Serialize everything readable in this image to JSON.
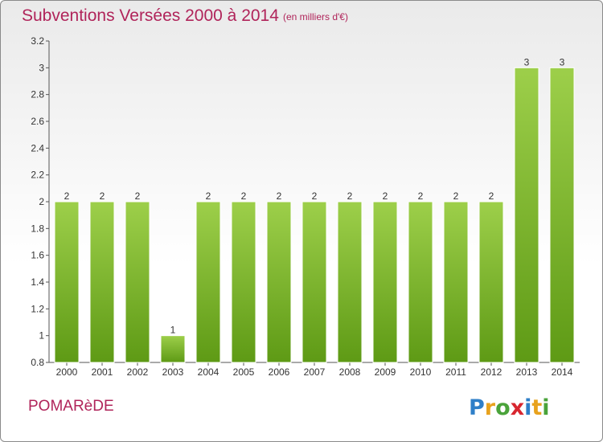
{
  "header": {
    "title": "Subventions Versées 2000 à 2014",
    "unit": "(en milliers d'€)"
  },
  "footer": {
    "commune": "POMARèDE",
    "logo_text": "Proxiti"
  },
  "colors": {
    "title": "#b0245a",
    "bar_light": "#9dcf4a",
    "bar_dark": "#5e9a15"
  },
  "chart_data": {
    "type": "bar",
    "categories": [
      "2000",
      "2001",
      "2002",
      "2003",
      "2004",
      "2005",
      "2006",
      "2007",
      "2008",
      "2009",
      "2010",
      "2011",
      "2012",
      "2013",
      "2014"
    ],
    "values": [
      2,
      2,
      2,
      1,
      2,
      2,
      2,
      2,
      2,
      2,
      2,
      2,
      2,
      3,
      3
    ],
    "data_labels": [
      "2",
      "2",
      "2",
      "1",
      "2",
      "2",
      "2",
      "2",
      "2",
      "2",
      "2",
      "2",
      "2",
      "3",
      "3"
    ],
    "ylim": [
      0.8,
      3.2
    ],
    "yticks": [
      0.8,
      1,
      1.2,
      1.4,
      1.6,
      1.8,
      2,
      2.2,
      2.4,
      2.6,
      2.8,
      3,
      3.2
    ],
    "ytick_labels": [
      "0.8",
      "1",
      "1.2",
      "1.4",
      "1.6",
      "1.8",
      "2",
      "2.2",
      "2.4",
      "2.6",
      "2.8",
      "3",
      "3.2"
    ],
    "grid": false,
    "legend": "none"
  }
}
